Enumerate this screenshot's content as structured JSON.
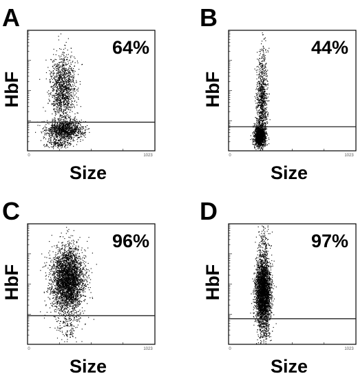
{
  "colors": {
    "points": "#000000",
    "background": "#ffffff",
    "frame": "#000000"
  },
  "chart_data": [
    {
      "type": "scatter",
      "panel": "A",
      "xlabel": "Size",
      "ylabel": "HbF",
      "annotation": "64%",
      "x_tick_labels": [
        "0",
        "1023"
      ],
      "xlim": [
        0,
        1023
      ],
      "ylim": [
        0,
        4
      ],
      "ylog": true,
      "gate_y": 0.95,
      "clusters": [
        {
          "cx": 300,
          "cy": 0.7,
          "sx": 75,
          "sy": 0.17,
          "n": 1150
        },
        {
          "cx": 280,
          "cy": 2.1,
          "sx": 50,
          "sy": 0.55,
          "n": 1250
        },
        {
          "cx": 245,
          "cy": 0.25,
          "sx": 50,
          "sy": 0.08,
          "n": 140
        }
      ]
    },
    {
      "type": "scatter",
      "panel": "B",
      "xlabel": "Size",
      "ylabel": "HbF",
      "annotation": "44%",
      "x_tick_labels": [
        "0",
        "1023"
      ],
      "xlim": [
        0,
        1023
      ],
      "ylim": [
        0,
        4
      ],
      "ylog": true,
      "gate_y": 0.8,
      "clusters": [
        {
          "cx": 250,
          "cy": 0.5,
          "sx": 22,
          "sy": 0.18,
          "n": 1250
        },
        {
          "cx": 265,
          "cy": 1.65,
          "sx": 22,
          "sy": 0.65,
          "n": 900
        },
        {
          "cx": 270,
          "cy": 3.1,
          "sx": 20,
          "sy": 0.35,
          "n": 70
        }
      ]
    },
    {
      "type": "scatter",
      "panel": "C",
      "xlabel": "Size",
      "ylabel": "HbF",
      "annotation": "96%",
      "x_tick_labels": [
        "0",
        "1023"
      ],
      "xlim": [
        0,
        1023
      ],
      "ylim": [
        0,
        4
      ],
      "ylog": true,
      "gate_y": 0.95,
      "clusters": [
        {
          "cx": 320,
          "cy": 2.15,
          "sx": 65,
          "sy": 0.55,
          "n": 3400
        },
        {
          "cx": 325,
          "cy": 0.6,
          "sx": 45,
          "sy": 0.3,
          "n": 130
        }
      ]
    },
    {
      "type": "scatter",
      "panel": "D",
      "xlabel": "Size",
      "ylabel": "HbF",
      "annotation": "97%",
      "x_tick_labels": [
        "0",
        "1023"
      ],
      "xlim": [
        0,
        1023
      ],
      "ylim": [
        0,
        4
      ],
      "ylog": true,
      "gate_y": 0.85,
      "clusters": [
        {
          "cx": 275,
          "cy": 1.75,
          "sx": 30,
          "sy": 0.55,
          "n": 3200
        },
        {
          "cx": 280,
          "cy": 3.3,
          "sx": 25,
          "sy": 0.35,
          "n": 150
        },
        {
          "cx": 285,
          "cy": 0.5,
          "sx": 25,
          "sy": 0.25,
          "n": 120
        }
      ]
    }
  ]
}
